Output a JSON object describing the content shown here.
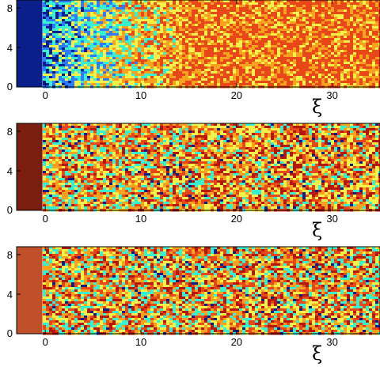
{
  "chart_data": [
    {
      "type": "heatmap",
      "title": "",
      "xlabel": "ξ",
      "ylabel": "",
      "xlim": [
        -3,
        35
      ],
      "ylim": [
        0,
        8.8
      ],
      "x_ticks": [
        "0",
        "10",
        "20",
        "30"
      ],
      "y_ticks": [
        "0",
        "4",
        "8"
      ],
      "wall_color": "#0b1f8a",
      "field_description_colors": [
        "#0b1f8a",
        "#2f7bff",
        "#37f0d2",
        "#f2f24a",
        "#f7a21e",
        "#e8471a"
      ]
    },
    {
      "type": "heatmap",
      "title": "",
      "xlabel": "ξ",
      "ylabel": "",
      "xlim": [
        -3,
        35
      ],
      "ylim": [
        0,
        8.8
      ],
      "x_ticks": [
        "0",
        "10",
        "20",
        "30"
      ],
      "y_ticks": [
        "0",
        "4",
        "8"
      ],
      "wall_color": "#7a1e10",
      "field_description_colors": [
        "#0b1f8a",
        "#37f0d2",
        "#f2f24a",
        "#f7a21e",
        "#e8471a",
        "#b5170d"
      ]
    },
    {
      "type": "heatmap",
      "title": "",
      "xlabel": "ξ",
      "ylabel": "",
      "xlim": [
        -3,
        35
      ],
      "ylim": [
        0,
        8.8
      ],
      "x_ticks": [
        "0",
        "10",
        "20",
        "30"
      ],
      "y_ticks": [
        "0",
        "4",
        "8"
      ],
      "wall_color": "#c0502a",
      "field_description_colors": [
        "#0b1f8a",
        "#37f0d2",
        "#f2f24a",
        "#f7a21e",
        "#e8471a",
        "#b5170d"
      ]
    }
  ]
}
